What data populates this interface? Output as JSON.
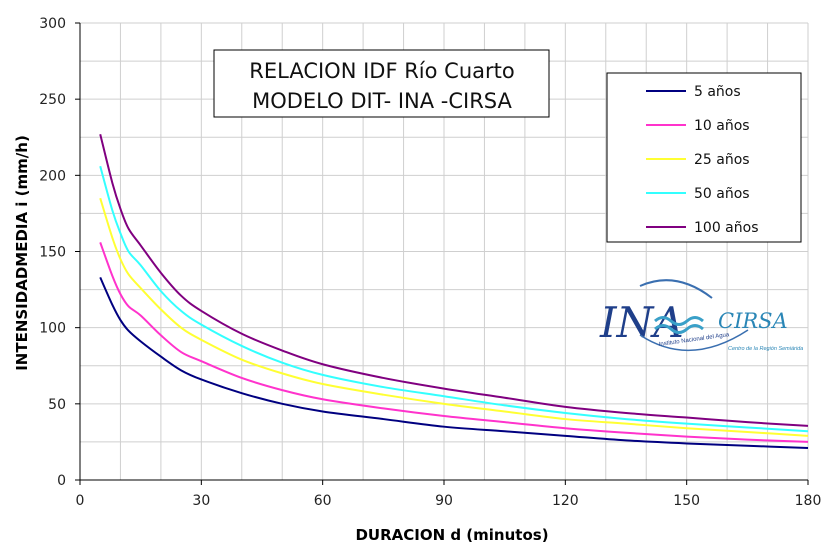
{
  "chart_data": {
    "type": "line",
    "title_lines": [
      "RELACION IDF Río Cuarto",
      "MODELO DIT- INA -CIRSA"
    ],
    "xlabel": "DURACION d (minutos)",
    "ylabel": "INTENSIDADMEDIA i (mm/h)",
    "xlim": [
      0,
      180
    ],
    "ylim": [
      0,
      300
    ],
    "xticks": [
      0,
      30,
      60,
      90,
      120,
      150,
      180
    ],
    "yticks": [
      0,
      50,
      100,
      150,
      200,
      250,
      300
    ],
    "grid": true,
    "legend_position": "top-right",
    "x": [
      5,
      8,
      10,
      12,
      15,
      20,
      25,
      30,
      40,
      50,
      60,
      75,
      90,
      105,
      120,
      135,
      150,
      165,
      180
    ],
    "series": [
      {
        "name": "5 años",
        "color": "#000080",
        "values": [
          133,
          115,
          105,
          98,
          91,
          81,
          72,
          66,
          57,
          50,
          45,
          40,
          35,
          32,
          29,
          26,
          24,
          22.5,
          21
        ]
      },
      {
        "name": "10 años",
        "color": "#ff33cc",
        "values": [
          156,
          134,
          122,
          114,
          108,
          95,
          84,
          78,
          67,
          59,
          53,
          47,
          42,
          38,
          34,
          31,
          28.5,
          26.5,
          25
        ]
      },
      {
        "name": "25 años",
        "color": "#ffff33",
        "values": [
          185,
          159,
          145,
          135,
          126,
          112,
          100,
          92,
          79,
          70,
          63,
          56,
          50,
          45,
          40,
          37,
          34,
          31.5,
          29
        ]
      },
      {
        "name": "50 años",
        "color": "#33ffff",
        "values": [
          206,
          177,
          162,
          150,
          141,
          124,
          111,
          102,
          88,
          77,
          69,
          61,
          55,
          49,
          44,
          40,
          37,
          34.5,
          32
        ]
      },
      {
        "name": "100 años",
        "color": "#800080",
        "values": [
          227,
          195,
          178,
          165,
          154,
          136,
          121,
          111,
          96,
          85,
          76,
          67,
          60,
          54,
          48,
          44,
          41,
          38,
          35.5
        ]
      }
    ],
    "logo": {
      "main": "INA",
      "secondary": "CIRSA",
      "sub1": "Instituto Nacional del Agua",
      "sub2": "Centro de la Región Semiárida"
    }
  }
}
